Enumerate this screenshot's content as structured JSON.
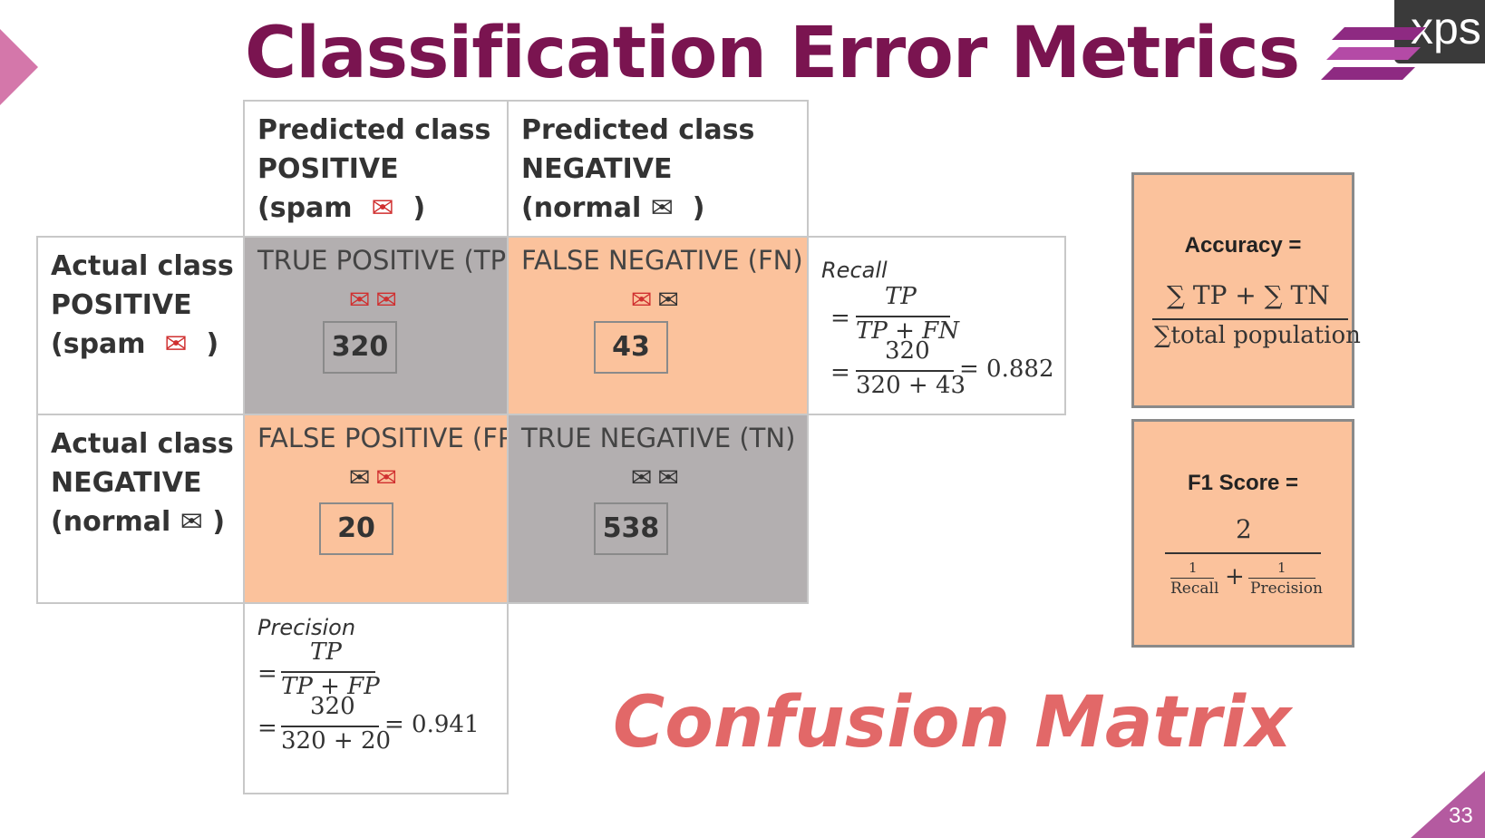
{
  "slide": {
    "title": "Classification Error Metrics",
    "subtitle": "Confusion Matrix",
    "page_number": "33",
    "logo_text": "xps"
  },
  "matrix": {
    "col_headers": [
      {
        "line1": "Predicted class",
        "line2": "POSITIVE",
        "line3_prefix": "(spam",
        "line3_suffix": ")",
        "icon": "envelope-red-icon"
      },
      {
        "line1": "Predicted class",
        "line2": "NEGATIVE",
        "line3_prefix": "(normal",
        "line3_suffix": ")",
        "icon": "open-envelope-icon"
      }
    ],
    "row_headers": [
      {
        "line1": "Actual class",
        "line2": "POSITIVE",
        "line3_prefix": "(spam",
        "line3_suffix": ")",
        "icon": "envelope-red-icon"
      },
      {
        "line1": "Actual class",
        "line2": "NEGATIVE",
        "line3_prefix": "(normal",
        "line3_suffix": ")",
        "icon": "envelope-dark-icon"
      }
    ],
    "cells": {
      "tp": {
        "label": "TRUE POSITIVE (TP)",
        "value": "320"
      },
      "fn": {
        "label": "FALSE NEGATIVE (FN)",
        "value": "43"
      },
      "fp": {
        "label": "FALSE POSITIVE (FP)",
        "value": "20"
      },
      "tn": {
        "label": "TRUE NEGATIVE (TN)",
        "value": "538"
      }
    }
  },
  "recall": {
    "label": "Recall",
    "eq": "=",
    "num_symbolic": "TP",
    "den_symbolic": "TP + FN",
    "num_value": "320",
    "den_value": "320 + 43",
    "result": "= 0.882"
  },
  "precision": {
    "label": "Precision",
    "eq": "=",
    "num_symbolic": "TP",
    "den_symbolic": "TP + FP",
    "num_value": "320",
    "den_value": "320 + 20",
    "result": "= 0.941"
  },
  "accuracy": {
    "title": "Accuracy =",
    "numerator": "∑ TP + ∑ TN",
    "denominator": "∑total population"
  },
  "f1": {
    "title": "F1 Score =",
    "numerator": "2",
    "one": "1",
    "recall": "Recall",
    "plus": "+",
    "precision": "Precision"
  },
  "colors": {
    "title": "#7a1450",
    "gray_cell": "#b3afb0",
    "peach_cell": "#fbc29c",
    "accent_red": "#e26868",
    "icon_red": "#d03030"
  }
}
